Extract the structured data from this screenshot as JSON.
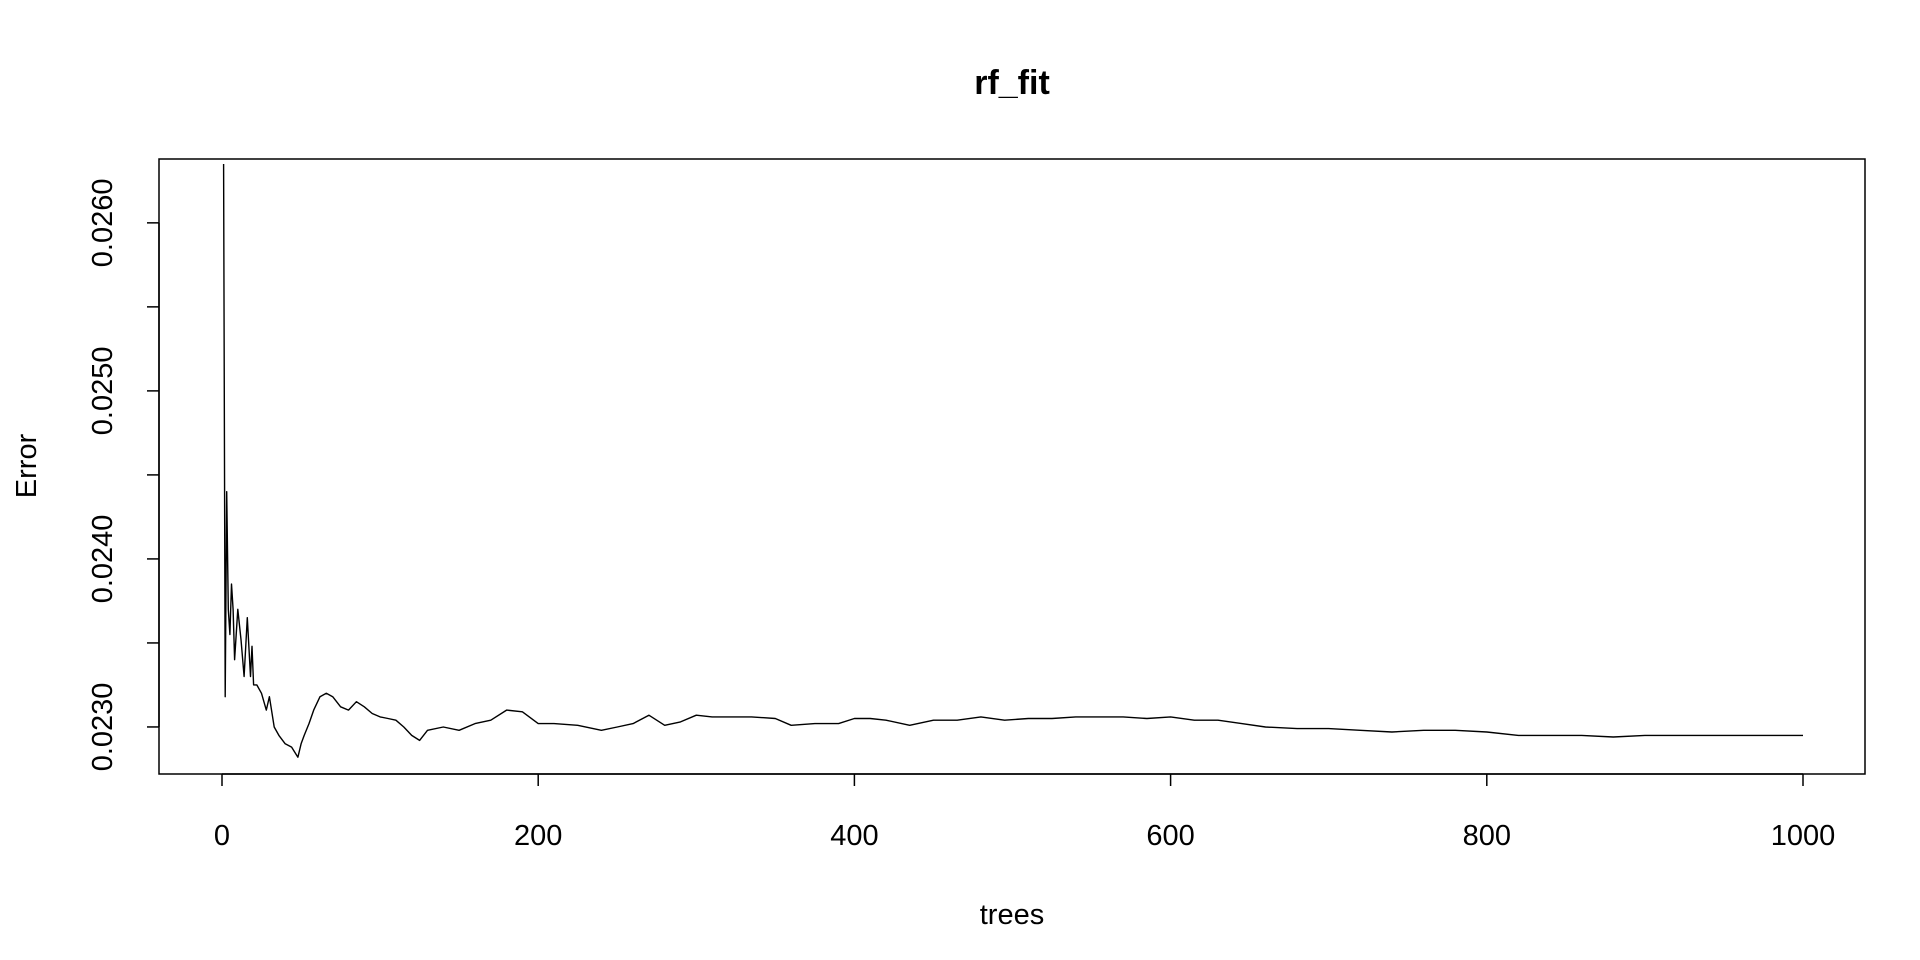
{
  "chart_data": {
    "type": "line",
    "title": "rf_fit",
    "xlabel": "trees",
    "ylabel": "Error",
    "xlim": [
      0,
      1000
    ],
    "ylim": [
      0.02272,
      0.02638
    ],
    "xticks": [
      0,
      200,
      400,
      600,
      800,
      1000
    ],
    "xtick_labels": [
      "0",
      "200",
      "400",
      "600",
      "800",
      "1000"
    ],
    "yticks": [
      0.023,
      0.0235,
      0.024,
      0.0245,
      0.025,
      0.0255,
      0.026
    ],
    "ytick_labels": [
      "0.0230",
      "",
      "0.0240",
      "",
      "0.0250",
      "",
      "0.0260"
    ],
    "grid": false,
    "legend": "none",
    "line_color": "#000000",
    "series": [
      {
        "x": [
          1,
          2,
          3,
          4,
          5,
          6,
          7,
          8,
          10,
          12,
          14,
          16,
          18,
          19,
          20,
          22,
          25,
          28,
          30,
          33,
          36,
          40,
          44,
          48,
          50,
          52,
          55,
          58,
          62,
          66,
          70,
          75,
          80,
          85,
          90,
          95,
          100,
          105,
          110,
          115,
          120,
          125,
          130,
          140,
          150,
          160,
          170,
          180,
          190,
          200,
          210,
          225,
          240,
          250,
          260,
          270,
          280,
          290,
          300,
          310,
          320,
          335,
          350,
          360,
          375,
          390,
          400,
          410,
          420,
          435,
          450,
          465,
          480,
          495,
          510,
          525,
          540,
          555,
          570,
          585,
          600,
          615,
          630,
          645,
          660,
          680,
          700,
          720,
          740,
          760,
          780,
          800,
          820,
          840,
          860,
          880,
          900,
          920,
          940,
          960,
          980,
          1000
        ],
        "values": [
          0.02635,
          0.02318,
          0.0244,
          0.0237,
          0.02355,
          0.02385,
          0.0237,
          0.0234,
          0.0237,
          0.02352,
          0.0233,
          0.02365,
          0.0233,
          0.02348,
          0.02325,
          0.02325,
          0.0232,
          0.0231,
          0.02318,
          0.023,
          0.02295,
          0.0229,
          0.02288,
          0.02282,
          0.0229,
          0.02295,
          0.02302,
          0.0231,
          0.02318,
          0.0232,
          0.02318,
          0.02312,
          0.0231,
          0.02315,
          0.02312,
          0.02308,
          0.02306,
          0.02305,
          0.02304,
          0.023,
          0.02295,
          0.02292,
          0.02298,
          0.023,
          0.02298,
          0.02302,
          0.02304,
          0.0231,
          0.02309,
          0.02302,
          0.02302,
          0.02301,
          0.02298,
          0.023,
          0.02302,
          0.02307,
          0.02301,
          0.02303,
          0.02307,
          0.02306,
          0.02306,
          0.02306,
          0.02305,
          0.02301,
          0.02302,
          0.02302,
          0.02305,
          0.02305,
          0.02304,
          0.02301,
          0.02304,
          0.02304,
          0.02306,
          0.02304,
          0.02305,
          0.02305,
          0.02306,
          0.02306,
          0.02306,
          0.02305,
          0.02306,
          0.02304,
          0.02304,
          0.02302,
          0.023,
          0.02299,
          0.02299,
          0.02298,
          0.02297,
          0.02298,
          0.02298,
          0.02297,
          0.02295,
          0.02295,
          0.02295,
          0.02294,
          0.02295,
          0.02295,
          0.02295,
          0.02295,
          0.02295,
          0.02295
        ]
      }
    ]
  }
}
